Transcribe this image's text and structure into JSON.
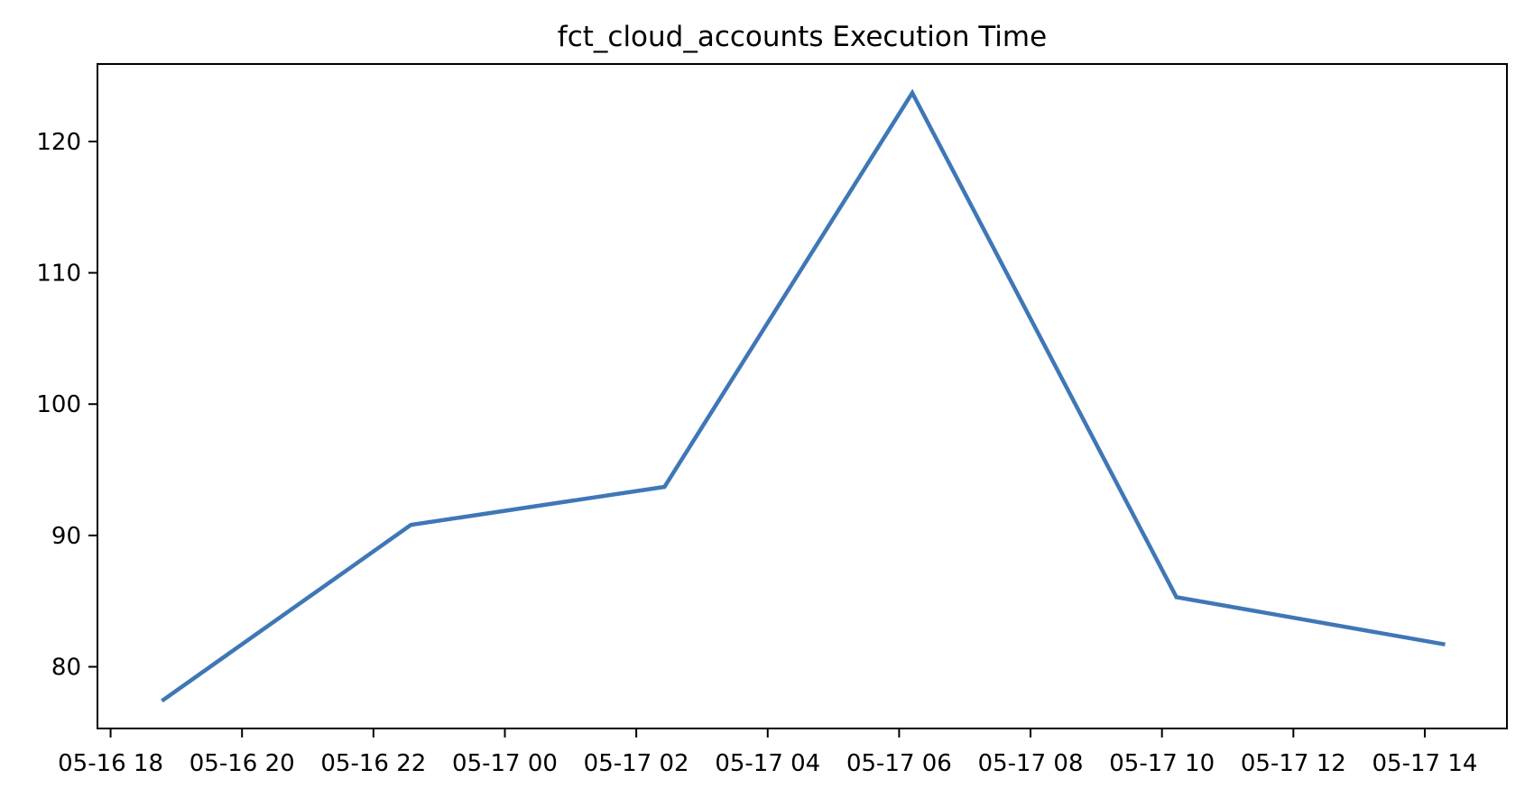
{
  "chart_data": {
    "type": "line",
    "title": "fct_cloud_accounts Execution Time",
    "xlabel": "",
    "ylabel": "",
    "grid": false,
    "legend": "none",
    "background_color": "#ffffff",
    "axes_color": "#000000",
    "x_unit": "timestamp (MM-DD HH), hours measured since 05-16 00:00",
    "x_tick_labels": [
      "05-16 18",
      "05-16 20",
      "05-16 22",
      "05-17 00",
      "05-17 02",
      "05-17 04",
      "05-17 06",
      "05-17 08",
      "05-17 10",
      "05-17 12",
      "05-17 14"
    ],
    "x_tick_hours": [
      18,
      20,
      22,
      24,
      26,
      28,
      30,
      32,
      34,
      36,
      38
    ],
    "y_ticks": [
      80,
      90,
      100,
      110,
      120
    ],
    "xlim_hours": [
      17.8,
      39.25
    ],
    "ylim": [
      75.3,
      125.9
    ],
    "series": [
      {
        "name": "execution_time",
        "color": "#3f77b6",
        "x_timestamps": [
          "05-16 18:47",
          "05-16 22:34",
          "05-17 02:26",
          "05-17 06:12",
          "05-17 10:13",
          "05-17 14:19"
        ],
        "x_hours": [
          18.78,
          22.57,
          26.43,
          30.2,
          34.22,
          38.31
        ],
        "values": [
          77.4,
          90.8,
          93.7,
          123.7,
          85.3,
          81.7
        ]
      }
    ]
  }
}
